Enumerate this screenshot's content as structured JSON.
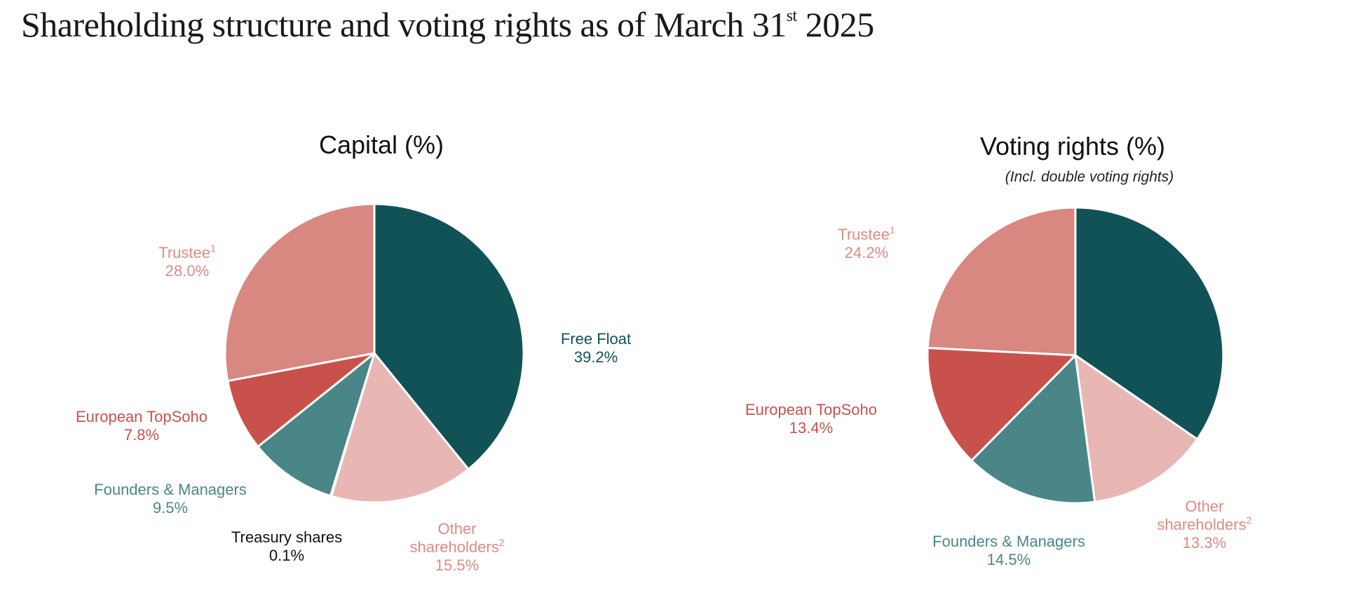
{
  "page": {
    "title": "Shareholding structure and voting rights as of March 31",
    "title_sup": "st",
    "title_year": "2025"
  },
  "colors": {
    "free_float": "#115257",
    "other_shareholders": "#e8b7b4",
    "treasury": "#111111",
    "founders_managers": "#4a8688",
    "european_topsoho": "#c8524b",
    "trustee": "#d88781"
  },
  "chart_data": [
    {
      "type": "pie",
      "title": "Capital (%)",
      "subtitle": "",
      "slices": [
        {
          "key": "free_float",
          "label": "Free Float",
          "sup": "",
          "value": 39.2,
          "display": "39.2%",
          "color": "#115257",
          "label_color": "#115257"
        },
        {
          "key": "other_shareholders",
          "label": "Other",
          "label2": "shareholders",
          "sup": "2",
          "value": 15.5,
          "display": "15.5%",
          "color": "#e8b7b4",
          "label_color": "#de8a84"
        },
        {
          "key": "treasury",
          "label": "Treasury shares",
          "sup": "",
          "value": 0.1,
          "display": "0.1%",
          "color": "#111111",
          "label_color": "#111111"
        },
        {
          "key": "founders_managers",
          "label": "Founders & Managers",
          "sup": "",
          "value": 9.5,
          "display": "9.5%",
          "color": "#4a8688",
          "label_color": "#4a8688"
        },
        {
          "key": "european_topsoho",
          "label": "European TopSoho",
          "sup": "",
          "value": 7.8,
          "display": "7.8%",
          "color": "#c8524b",
          "label_color": "#c8524b"
        },
        {
          "key": "trustee",
          "label": "Trustee",
          "sup": "1",
          "value": 28.0,
          "display": "28.0%",
          "color": "#d88781",
          "label_color": "#de8a84"
        }
      ]
    },
    {
      "type": "pie",
      "title": "Voting rights (%)",
      "subtitle": "(Incl. double voting rights)",
      "slices": [
        {
          "key": "free_float",
          "label": "",
          "sup": "",
          "value": 34.6,
          "display": "",
          "color": "#115257",
          "label_color": "#115257"
        },
        {
          "key": "other_shareholders",
          "label": "Other",
          "label2": "shareholders",
          "sup": "2",
          "value": 13.3,
          "display": "13.3%",
          "color": "#e8b7b4",
          "label_color": "#de8a84"
        },
        {
          "key": "founders_managers",
          "label": "Founders & Managers",
          "sup": "",
          "value": 14.5,
          "display": "14.5%",
          "color": "#4a8688",
          "label_color": "#4a8688"
        },
        {
          "key": "european_topsoho",
          "label": "European TopSoho",
          "sup": "",
          "value": 13.4,
          "display": "13.4%",
          "color": "#c8524b",
          "label_color": "#c8524b"
        },
        {
          "key": "trustee",
          "label": "Trustee",
          "sup": "1",
          "value": 24.2,
          "display": "24.2%",
          "color": "#d88781",
          "label_color": "#de8a84"
        }
      ]
    }
  ]
}
